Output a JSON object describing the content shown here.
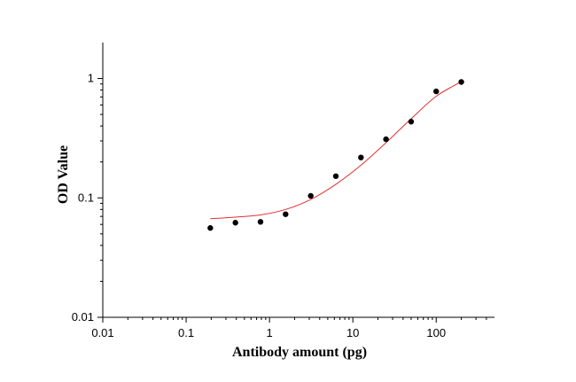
{
  "chart_data": {
    "type": "scatter",
    "title": "",
    "xlabel": "Antibody amount (pg)",
    "ylabel": "OD Value",
    "xscale": "log",
    "yscale": "log",
    "xlim": [
      0.01,
      500
    ],
    "ylim": [
      0.01,
      2
    ],
    "grid": false,
    "legend": "none",
    "x_ticks": [
      {
        "value": 0.01,
        "label": "0.01"
      },
      {
        "value": 0.1,
        "label": "0.1"
      },
      {
        "value": 1,
        "label": "1"
      },
      {
        "value": 10,
        "label": "10"
      },
      {
        "value": 100,
        "label": "100"
      }
    ],
    "y_ticks": [
      {
        "value": 0.01,
        "label": "0.01"
      },
      {
        "value": 0.1,
        "label": "0.1"
      },
      {
        "value": 1,
        "label": "1"
      }
    ],
    "series": [
      {
        "kind": "points",
        "color": "#000000",
        "points": [
          {
            "x": 0.195,
            "y": 0.056
          },
          {
            "x": 0.39,
            "y": 0.062
          },
          {
            "x": 0.78,
            "y": 0.063
          },
          {
            "x": 1.56,
            "y": 0.073
          },
          {
            "x": 3.125,
            "y": 0.104
          },
          {
            "x": 6.25,
            "y": 0.152
          },
          {
            "x": 12.5,
            "y": 0.218
          },
          {
            "x": 25,
            "y": 0.31
          },
          {
            "x": 50,
            "y": 0.435
          },
          {
            "x": 100,
            "y": 0.78
          },
          {
            "x": 200,
            "y": 0.935
          }
        ]
      },
      {
        "kind": "fit-curve",
        "color": "#e03030",
        "points": [
          {
            "x": 0.195,
            "y": 0.067
          },
          {
            "x": 0.39,
            "y": 0.069
          },
          {
            "x": 0.78,
            "y": 0.072
          },
          {
            "x": 1.56,
            "y": 0.08
          },
          {
            "x": 3.125,
            "y": 0.097
          },
          {
            "x": 6.25,
            "y": 0.13
          },
          {
            "x": 12.5,
            "y": 0.188
          },
          {
            "x": 25,
            "y": 0.29
          },
          {
            "x": 50,
            "y": 0.46
          },
          {
            "x": 100,
            "y": 0.71
          },
          {
            "x": 200,
            "y": 0.94
          }
        ]
      }
    ]
  }
}
